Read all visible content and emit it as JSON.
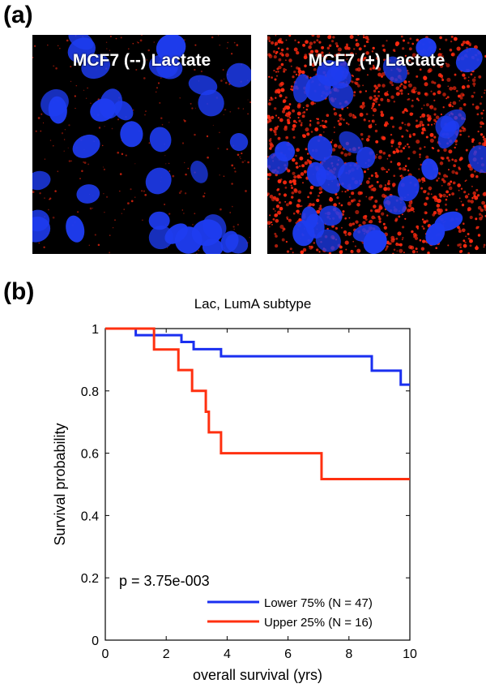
{
  "panel_a": {
    "label": "(a)",
    "images": [
      {
        "caption": "MCF7 (--) Lactate",
        "nucleus_color": "#1e3cf0",
        "stain_color": "#ff2a10",
        "stain_level": "low"
      },
      {
        "caption": "MCF7 (+) Lactate",
        "nucleus_color": "#1e3cf0",
        "stain_color": "#ff2a10",
        "stain_level": "high"
      }
    ]
  },
  "panel_b": {
    "label": "(b)"
  },
  "chart_data": {
    "type": "line",
    "subtype": "kaplan-meier step",
    "title": "Lac, LumA subtype",
    "xlabel": "overall survival (yrs)",
    "ylabel": "Survival probability",
    "xlim": [
      0,
      10
    ],
    "ylim": [
      0,
      1
    ],
    "xticks": [
      "0",
      "2",
      "4",
      "6",
      "8",
      "10"
    ],
    "yticks": [
      "0",
      "0.2",
      "0.4",
      "0.6",
      "0.8",
      "1"
    ],
    "annotation": "p = 3.75e-003",
    "legend_position": "bottom-right",
    "grid": false,
    "series": [
      {
        "name": "Lower 75% (N = 47)",
        "color": "#1a2ff0",
        "x": [
          0,
          1.0,
          2.5,
          2.9,
          3.8,
          8.75,
          9.7,
          10
        ],
        "y": [
          1.0,
          0.979,
          0.957,
          0.934,
          0.911,
          0.865,
          0.82,
          0.82
        ]
      },
      {
        "name": "Upper 25% (N = 16)",
        "color": "#ff3010",
        "x": [
          0,
          1.6,
          2.4,
          2.85,
          3.3,
          3.4,
          3.8,
          7.1,
          10
        ],
        "y": [
          1.0,
          0.933,
          0.867,
          0.8,
          0.733,
          0.667,
          0.6,
          0.517,
          0.517
        ]
      }
    ]
  }
}
